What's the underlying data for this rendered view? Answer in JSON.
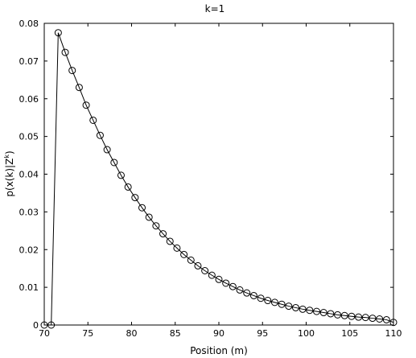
{
  "chart_data": {
    "type": "line",
    "title": "k=1",
    "xlabel": "Position (m)",
    "ylabel": "p(x(k)|Z k)",
    "ylabel_main": "p(x(k)|Z",
    "ylabel_sup": "k",
    "ylabel_close": ")",
    "xlim": [
      70,
      110
    ],
    "ylim": [
      0,
      0.08
    ],
    "x_ticks": [
      70,
      75,
      80,
      85,
      90,
      95,
      100,
      105,
      110
    ],
    "x_tick_labels": [
      "70",
      "75",
      "80",
      "85",
      "90",
      "95",
      "100",
      "105",
      "110"
    ],
    "y_ticks": [
      0,
      0.01,
      0.02,
      0.03,
      0.04,
      0.05,
      0.06,
      0.07,
      0.08
    ],
    "y_tick_labels": [
      "0",
      "0.01",
      "0.02",
      "0.03",
      "0.04",
      "0.05",
      "0.06",
      "0.07",
      "0.08"
    ],
    "grid": false,
    "series": [
      {
        "marker": "circle",
        "color": "#000000",
        "x": [
          70.0,
          70.8,
          71.6,
          72.4,
          73.2,
          74.0,
          74.8,
          75.6,
          76.4,
          77.2,
          78.0,
          78.8,
          79.6,
          80.4,
          81.2,
          82.0,
          82.8,
          83.6,
          84.4,
          85.2,
          86.0,
          86.8,
          87.6,
          88.4,
          89.2,
          90.0,
          90.8,
          91.6,
          92.4,
          93.2,
          94.0,
          94.8,
          95.6,
          96.4,
          97.2,
          98.0,
          98.8,
          99.6,
          100.4,
          101.2,
          102.0,
          102.8,
          103.6,
          104.4,
          105.2,
          106.0,
          106.8,
          107.6,
          108.4,
          109.2,
          110.0
        ],
        "y": [
          0.0,
          0.0,
          0.0775,
          0.0723,
          0.0675,
          0.063,
          0.0583,
          0.0543,
          0.0503,
          0.0465,
          0.0431,
          0.0397,
          0.0366,
          0.0338,
          0.0311,
          0.0286,
          0.0263,
          0.0242,
          0.0222,
          0.0204,
          0.0187,
          0.0172,
          0.0157,
          0.0144,
          0.0132,
          0.0121,
          0.0111,
          0.0102,
          0.0093,
          0.0085,
          0.0078,
          0.0071,
          0.0065,
          0.006,
          0.0055,
          0.005,
          0.0046,
          0.0042,
          0.0039,
          0.0036,
          0.0033,
          0.003,
          0.0027,
          0.0025,
          0.0023,
          0.0021,
          0.002,
          0.0018,
          0.0016,
          0.0014,
          0.0007
        ]
      }
    ]
  }
}
